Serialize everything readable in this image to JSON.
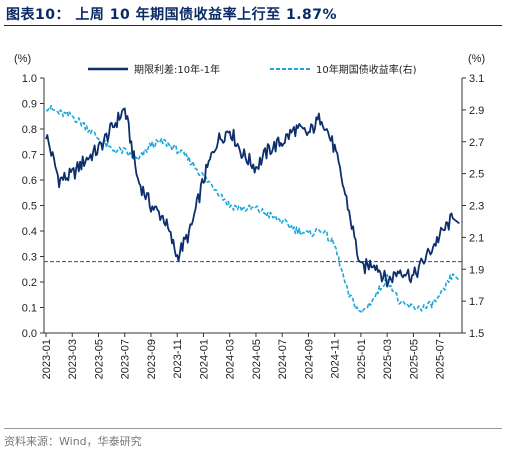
{
  "title": "图表10： 上周 10 年期国债收益率上行至 1.87%",
  "source": "资料来源：Wind，华泰研究",
  "colors": {
    "series1": "#0d2f6e",
    "series2": "#1ea6d8",
    "refline": "#2a4f8a",
    "axis": "#333333"
  },
  "chart_data": {
    "type": "line",
    "yunit_left": "(%)",
    "yunit_right": "(%)",
    "ylim_left": [
      0.0,
      1.0
    ],
    "ylim_right": [
      1.5,
      3.1
    ],
    "yticks_left": [
      "0.0",
      "0.1",
      "0.2",
      "0.3",
      "0.4",
      "0.5",
      "0.6",
      "0.7",
      "0.8",
      "0.9",
      "1.0"
    ],
    "yticks_right": [
      "1.5",
      "1.7",
      "1.9",
      "2.1",
      "2.3",
      "2.5",
      "2.7",
      "2.9",
      "3.1"
    ],
    "xticks": [
      "2023-01",
      "2023-03",
      "2023-05",
      "2023-07",
      "2023-09",
      "2023-11",
      "2024-01",
      "2024-03",
      "2024-05",
      "2024-07",
      "2024-09",
      "2024-11",
      "2025-01",
      "2025-03",
      "2025-05",
      "2025-07"
    ],
    "legend_position": "top",
    "reference_line": {
      "axis": "left",
      "value": 0.28,
      "style": "dashed"
    },
    "series": [
      {
        "name": "期限利差:10年-1年",
        "axis": "left",
        "style": "solid",
        "x": [
          "2023-01",
          "2023-02",
          "2023-03",
          "2023-04",
          "2023-05",
          "2023-06",
          "2023-07",
          "2023-08",
          "2023-09",
          "2023-10",
          "2023-11",
          "2023-12",
          "2024-01",
          "2024-02",
          "2024-03",
          "2024-04",
          "2024-05",
          "2024-06",
          "2024-07",
          "2024-08",
          "2024-09",
          "2024-10",
          "2024-11",
          "2024-12",
          "2025-01",
          "2025-02",
          "2025-03",
          "2025-04",
          "2025-05",
          "2025-06",
          "2025-07",
          "2025-08"
        ],
        "values": [
          0.78,
          0.6,
          0.62,
          0.68,
          0.72,
          0.8,
          0.88,
          0.6,
          0.5,
          0.45,
          0.3,
          0.4,
          0.6,
          0.75,
          0.8,
          0.7,
          0.65,
          0.72,
          0.75,
          0.8,
          0.78,
          0.85,
          0.72,
          0.5,
          0.25,
          0.28,
          0.2,
          0.25,
          0.22,
          0.3,
          0.38,
          0.45
        ]
      },
      {
        "name": "10年期国债收益率(右)",
        "axis": "right",
        "style": "dashed",
        "x": [
          "2023-01",
          "2023-02",
          "2023-03",
          "2023-04",
          "2023-05",
          "2023-06",
          "2023-07",
          "2023-08",
          "2023-09",
          "2023-10",
          "2023-11",
          "2023-12",
          "2024-01",
          "2024-02",
          "2024-03",
          "2024-04",
          "2024-05",
          "2024-06",
          "2024-07",
          "2024-08",
          "2024-09",
          "2024-10",
          "2024-11",
          "2024-12",
          "2025-01",
          "2025-02",
          "2025-03",
          "2025-04",
          "2025-05",
          "2025-06",
          "2025-07",
          "2025-08"
        ],
        "values": [
          2.92,
          2.88,
          2.86,
          2.8,
          2.72,
          2.65,
          2.64,
          2.58,
          2.68,
          2.7,
          2.65,
          2.58,
          2.48,
          2.4,
          2.3,
          2.28,
          2.28,
          2.24,
          2.2,
          2.15,
          2.12,
          2.15,
          2.05,
          1.75,
          1.62,
          1.72,
          1.85,
          1.68,
          1.66,
          1.66,
          1.72,
          1.87
        ]
      }
    ]
  }
}
